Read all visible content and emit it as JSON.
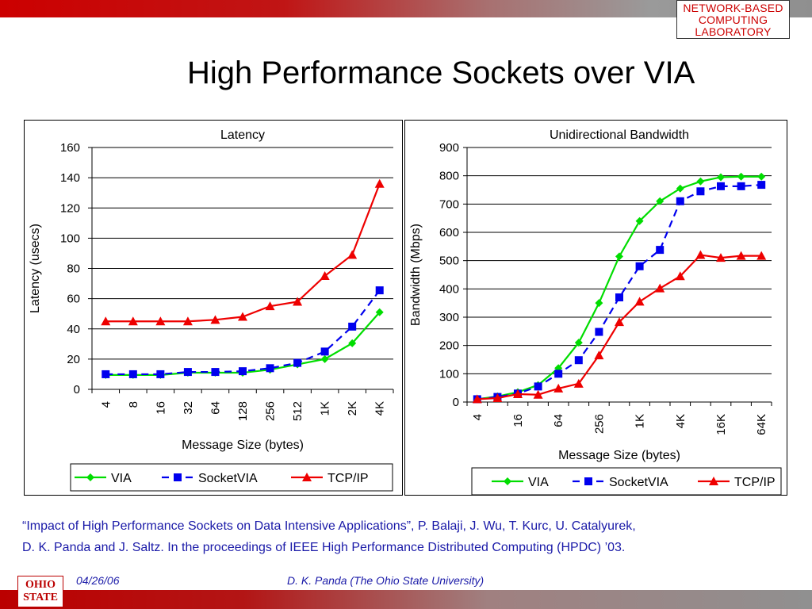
{
  "header": {
    "logo_lines": [
      "NETWORK-BASED",
      "COMPUTING",
      "LABORATORY"
    ],
    "title": "High Performance Sockets over VIA"
  },
  "colors": {
    "via": "#00dd00",
    "socketvia": "#0000ee",
    "tcpip": "#ee0000",
    "brand_red": "#cc0000",
    "citation": "#1a1aa8"
  },
  "chart_data": [
    {
      "type": "line",
      "title": "Latency",
      "xlabel": "Message Size (bytes)",
      "ylabel": "Latency (usecs)",
      "ylim": [
        0,
        160
      ],
      "yticks": [
        "0",
        "20",
        "40",
        "60",
        "80",
        "100",
        "120",
        "140",
        "160"
      ],
      "categories": [
        "4",
        "8",
        "16",
        "32",
        "64",
        "128",
        "256",
        "512",
        "1K",
        "2K",
        "4K"
      ],
      "grid": true,
      "legend": "bottom",
      "series": [
        {
          "name": "VIA",
          "color": "#00dd00",
          "marker": "diamond",
          "dash": false,
          "values": [
            9.5,
            9.5,
            9.5,
            11,
            11,
            11,
            13,
            16.5,
            20,
            30.5,
            51
          ]
        },
        {
          "name": "SocketVIA",
          "color": "#0000ee",
          "marker": "square",
          "dash": true,
          "values": [
            10,
            10,
            10,
            11.5,
            11.5,
            12,
            14,
            17.5,
            25,
            41.5,
            65.5
          ]
        },
        {
          "name": "TCP/IP",
          "color": "#ee0000",
          "marker": "triangle",
          "dash": false,
          "values": [
            45,
            45,
            45,
            45,
            46,
            48,
            55,
            58,
            75,
            89,
            136
          ]
        }
      ]
    },
    {
      "type": "line",
      "title": "Unidirectional Bandwidth",
      "xlabel": "Message Size (bytes)",
      "ylabel": "Bandwidth (Mbps)",
      "ylim": [
        0,
        900
      ],
      "yticks": [
        "0",
        "100",
        "200",
        "300",
        "400",
        "500",
        "600",
        "700",
        "800",
        "900"
      ],
      "categories": [
        "4",
        "",
        "16",
        "",
        "64",
        "",
        "256",
        "",
        "1K",
        "",
        "4K",
        "",
        "16K",
        "",
        "64K"
      ],
      "grid": true,
      "legend": "bottom",
      "series": [
        {
          "name": "VIA",
          "color": "#00dd00",
          "marker": "diamond",
          "dash": false,
          "values": [
            10,
            20,
            35,
            60,
            120,
            210,
            350,
            515,
            640,
            710,
            755,
            780,
            795,
            797,
            797
          ]
        },
        {
          "name": "SocketVIA",
          "color": "#0000ee",
          "marker": "square",
          "dash": true,
          "values": [
            10,
            18,
            30,
            55,
            100,
            148,
            248,
            370,
            480,
            538,
            710,
            745,
            763,
            763,
            768
          ]
        },
        {
          "name": "TCP/IP",
          "color": "#ee0000",
          "marker": "triangle",
          "dash": false,
          "values": [
            10,
            14,
            28,
            26,
            48,
            65,
            165,
            283,
            355,
            402,
            445,
            520,
            510,
            517,
            517
          ]
        }
      ]
    }
  ],
  "citation": {
    "line1": "“Impact of High Performance Sockets on Data Intensive Applications”, P. Balaji, J. Wu, T. Kurc, U. Catalyurek,",
    "line2": "D. K. Panda and J. Saltz. In the proceedings of IEEE High Performance Distributed Computing (HPDC) ’03."
  },
  "footer": {
    "date": "04/26/06",
    "author": "D. K. Panda (The Ohio State University)",
    "osu_logo_lines": [
      "OHIO",
      "STATE"
    ]
  }
}
